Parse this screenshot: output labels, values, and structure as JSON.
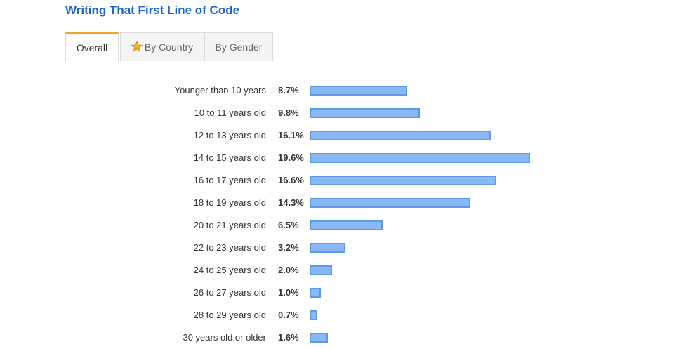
{
  "page": {
    "title": "Writing That First Line of Code"
  },
  "tabs": [
    {
      "label": "Overall",
      "active": true
    },
    {
      "label": "By Country",
      "icon": "star-icon",
      "active": false
    },
    {
      "label": "By Gender",
      "active": false
    }
  ],
  "colors": {
    "title": "#1f66c9",
    "active_tab_accent": "#f0a030",
    "bar_fill": "#8ab8f4",
    "bar_border": "#5a9ae6"
  },
  "chart_data": {
    "type": "bar",
    "orientation": "horizontal",
    "title": "",
    "xlabel": "",
    "ylabel": "",
    "categories": [
      "Younger than 10 years",
      "10 to 11 years old",
      "12 to 13 years old",
      "14 to 15 years old",
      "16 to 17 years old",
      "18 to 19 years old",
      "20 to 21 years old",
      "22 to 23 years old",
      "24 to 25 years old",
      "26 to 27 years old",
      "28 to 29 years old",
      "30 years old or older"
    ],
    "values": [
      8.7,
      9.8,
      16.1,
      19.6,
      16.6,
      14.3,
      6.5,
      3.2,
      2.0,
      1.0,
      0.7,
      1.6
    ],
    "value_labels": [
      "8.7%",
      "9.8%",
      "16.1%",
      "19.6%",
      "16.6%",
      "14.3%",
      "6.5%",
      "3.2%",
      "2.0%",
      "1.0%",
      "0.7%",
      "1.6%"
    ],
    "xlim": [
      0,
      19.6
    ],
    "grid": false,
    "legend": false
  }
}
